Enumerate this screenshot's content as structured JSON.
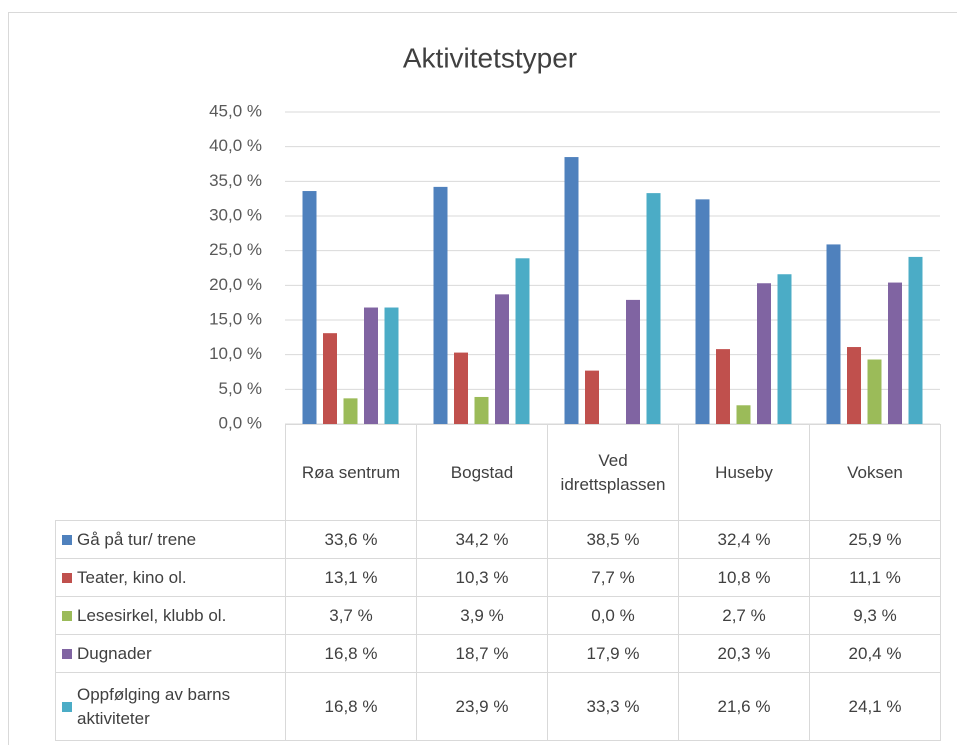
{
  "chart_data": {
    "type": "bar",
    "title": "Aktivitetstyper",
    "categories": [
      "Røa sentrum",
      "Bogstad",
      "Ved idrettsplassen",
      "Huseby",
      "Voksen"
    ],
    "series": [
      {
        "name": "Gå på tur/ trene",
        "color": "#4f81bd",
        "values": [
          33.6,
          34.2,
          38.5,
          32.4,
          25.9
        ],
        "value_labels": [
          "33,6 %",
          "34,2 %",
          "38,5 %",
          "32,4 %",
          "25,9 %"
        ]
      },
      {
        "name": "Teater, kino ol.",
        "color": "#c0504d",
        "values": [
          13.1,
          10.3,
          7.7,
          10.8,
          11.1
        ],
        "value_labels": [
          "13,1 %",
          "10,3 %",
          "7,7 %",
          "10,8 %",
          "11,1 %"
        ]
      },
      {
        "name": "Lesesirkel, klubb ol.",
        "color": "#9bbb59",
        "values": [
          3.7,
          3.9,
          0.0,
          2.7,
          9.3
        ],
        "value_labels": [
          "3,7 %",
          "3,9 %",
          "0,0 %",
          "2,7 %",
          "9,3 %"
        ]
      },
      {
        "name": "Dugnader",
        "color": "#8064a2",
        "values": [
          16.8,
          18.7,
          17.9,
          20.3,
          20.4
        ],
        "value_labels": [
          "16,8 %",
          "18,7 %",
          "17,9 %",
          "20,3 %",
          "20,4 %"
        ]
      },
      {
        "name": "Oppfølging av barns aktiviteter",
        "color": "#4bacc6",
        "values": [
          16.8,
          23.9,
          33.3,
          21.6,
          24.1
        ],
        "value_labels": [
          "16,8 %",
          "23,9 %",
          "33,3 %",
          "21,6 %",
          "24,1 %"
        ]
      }
    ],
    "ylim": [
      0,
      45
    ],
    "yticks": [
      {
        "value": 0,
        "label": "0,0 %"
      },
      {
        "value": 5,
        "label": "5,0 %"
      },
      {
        "value": 10,
        "label": "10,0 %"
      },
      {
        "value": 15,
        "label": "15,0 %"
      },
      {
        "value": 20,
        "label": "20,0 %"
      },
      {
        "value": 25,
        "label": "25,0 %"
      },
      {
        "value": 30,
        "label": "30,0 %"
      },
      {
        "value": 35,
        "label": "35,0 %"
      },
      {
        "value": 40,
        "label": "40,0 %"
      },
      {
        "value": 45,
        "label": "45,0 %"
      }
    ],
    "grid": true
  }
}
